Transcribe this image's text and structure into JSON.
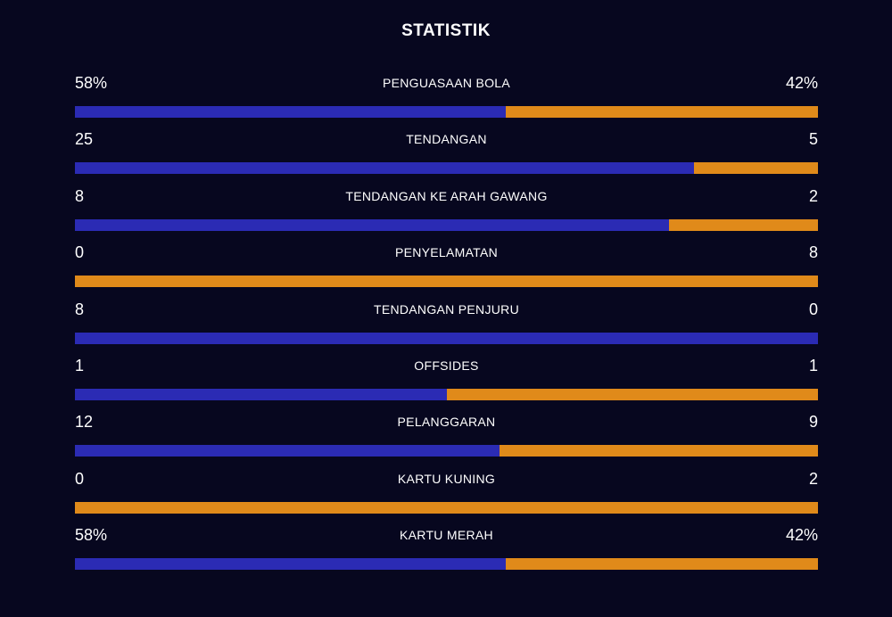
{
  "title": "STATISTIK",
  "colors": {
    "background": "#07071f",
    "home": "#2b2bb4",
    "away": "#e08a1a",
    "text": "#ffffff"
  },
  "stats": [
    {
      "label": "PENGUASAAN BOLA",
      "home": "58%",
      "away": "42%",
      "home_share": 0.58
    },
    {
      "label": "TENDANGAN",
      "home": "25",
      "away": "5",
      "home_share": 0.8333
    },
    {
      "label": "TENDANGAN KE ARAH GAWANG",
      "home": "8",
      "away": "2",
      "home_share": 0.8
    },
    {
      "label": "PENYELAMATAN",
      "home": "0",
      "away": "8",
      "home_share": 0.0
    },
    {
      "label": "TENDANGAN PENJURU",
      "home": "8",
      "away": "0",
      "home_share": 1.0
    },
    {
      "label": "OFFSIDES",
      "home": "1",
      "away": "1",
      "home_share": 0.5
    },
    {
      "label": "PELANGGARAN",
      "home": "12",
      "away": "9",
      "home_share": 0.5714
    },
    {
      "label": "KARTU KUNING",
      "home": "0",
      "away": "2",
      "home_share": 0.0
    },
    {
      "label": "KARTU MERAH",
      "home": "58%",
      "away": "42%",
      "home_share": 0.58
    }
  ]
}
